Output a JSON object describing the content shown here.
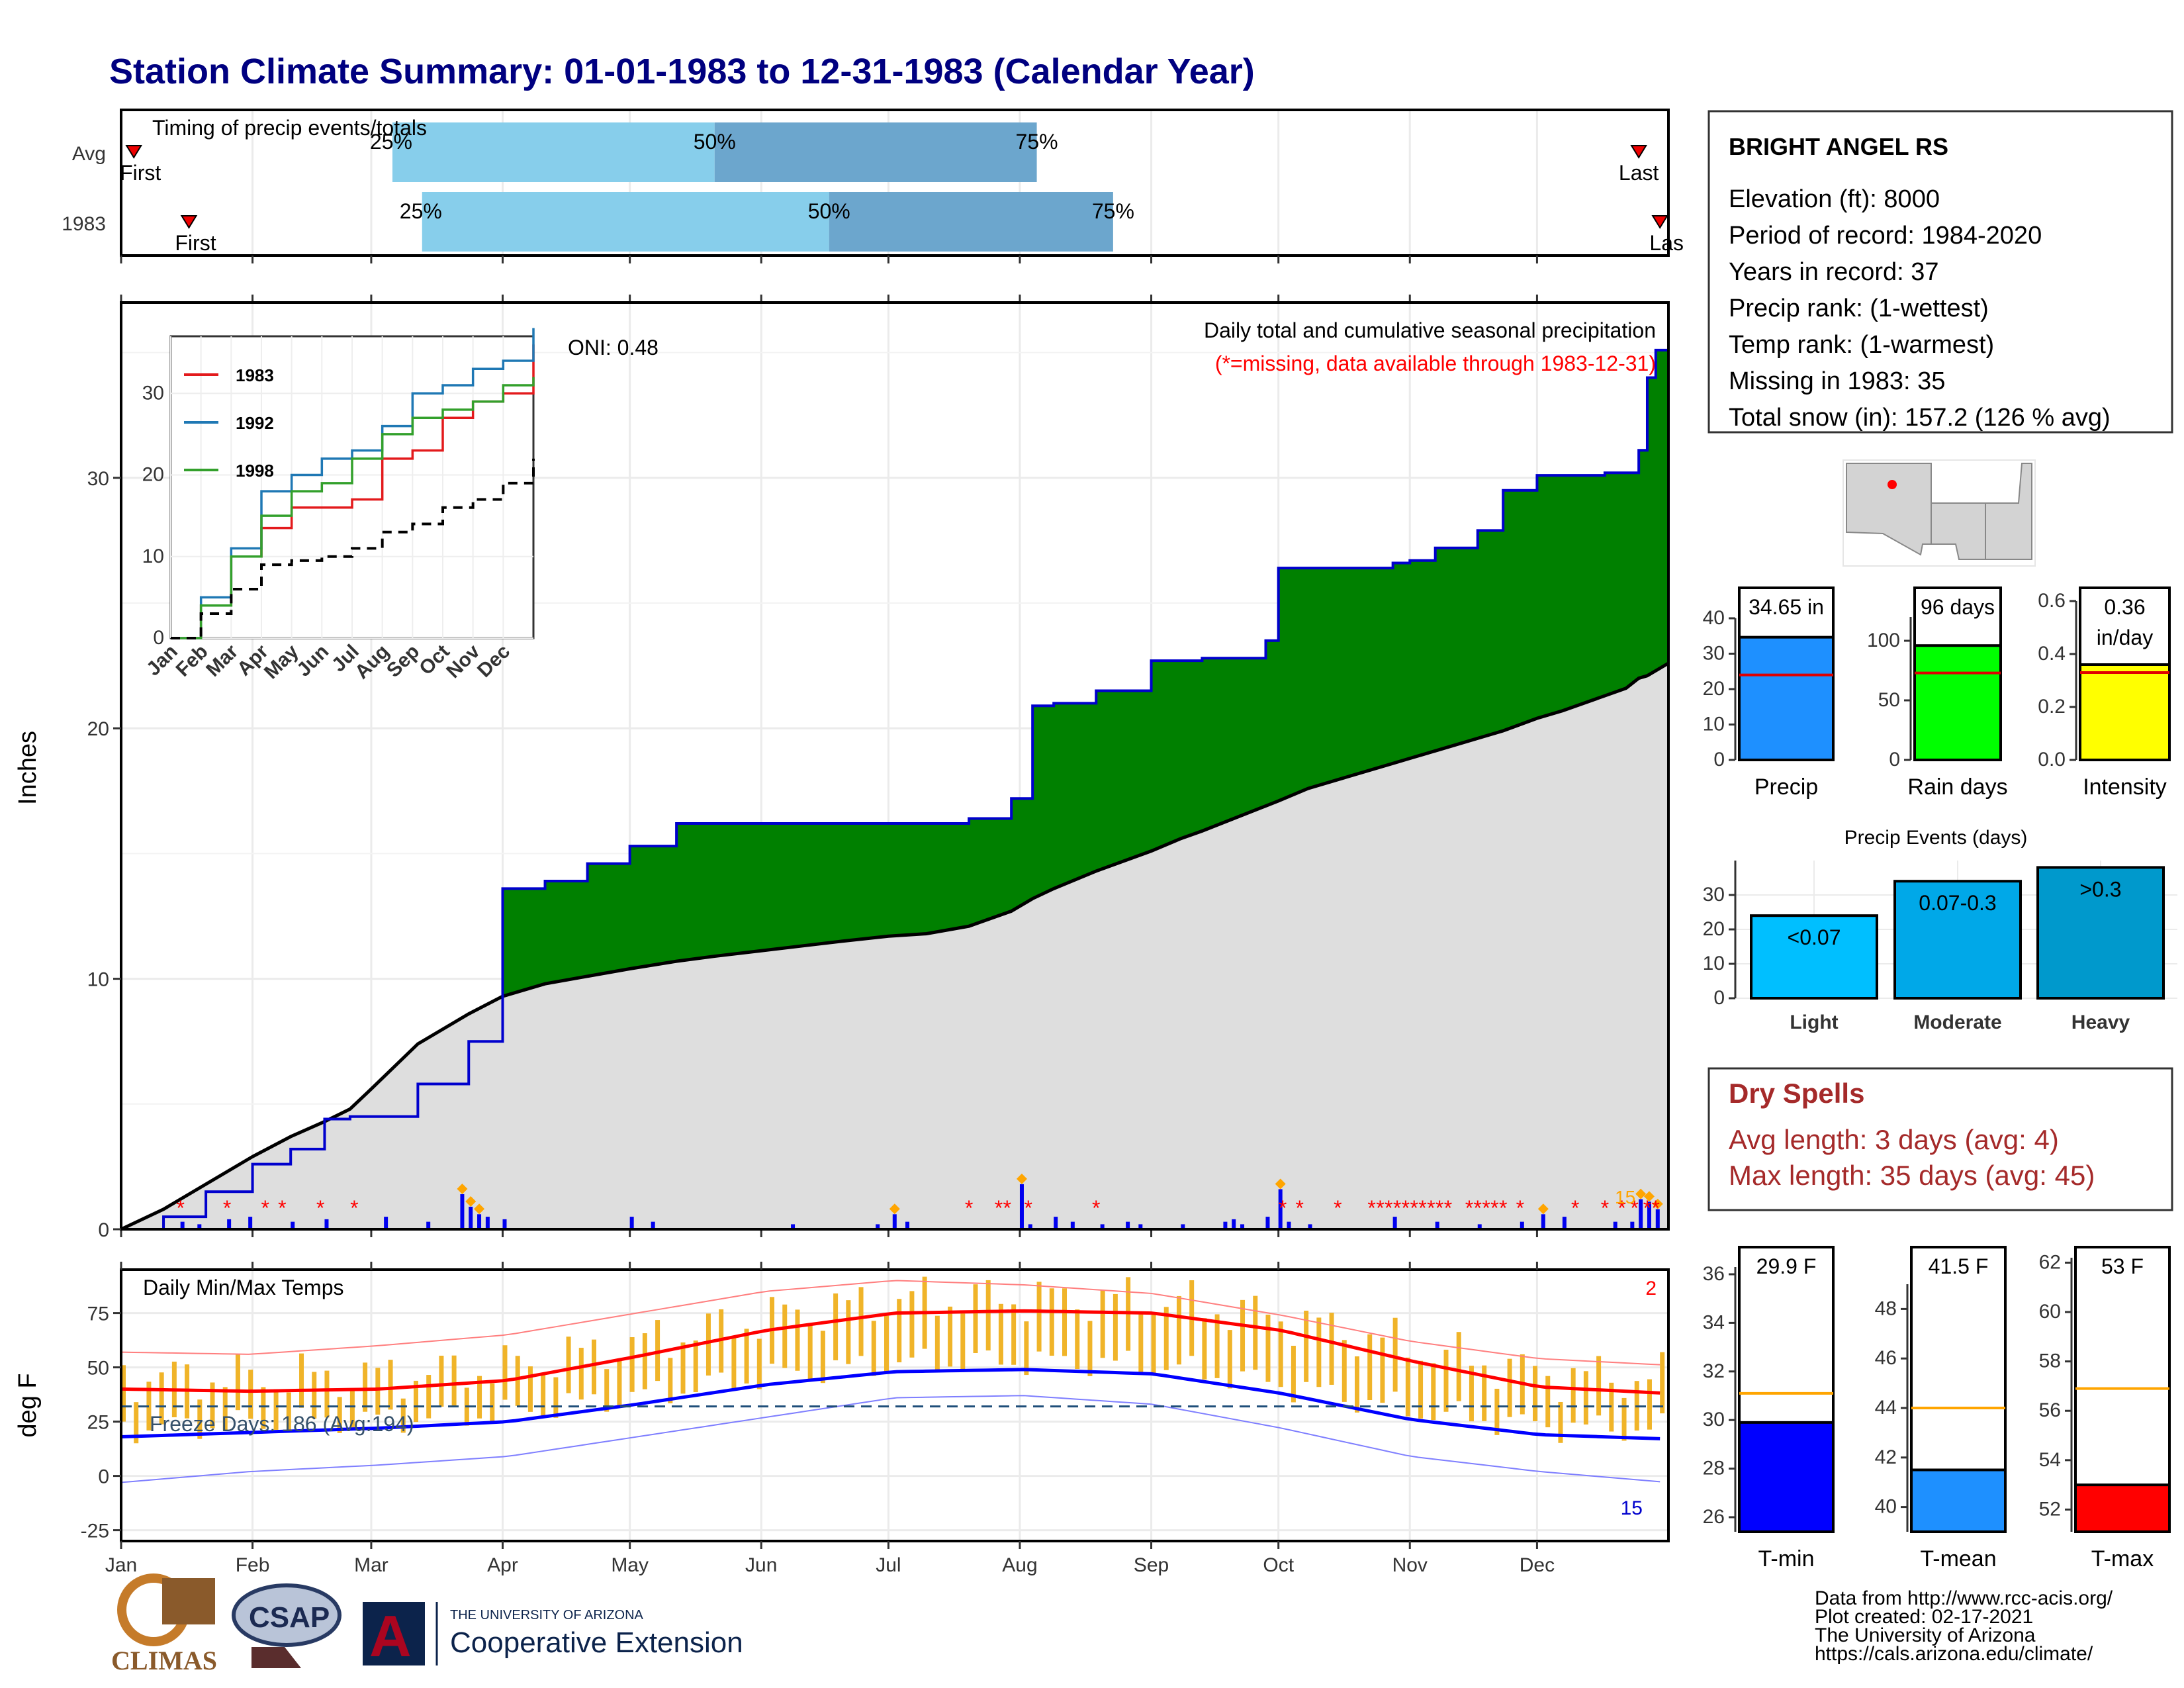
{
  "title": "Station Climate Summary: 01-01-1983 to 12-31-1983 (Calendar Year)",
  "timing_panel": {
    "label": "Timing of precip events/totals",
    "rows": [
      "Avg",
      "1983"
    ],
    "first_label": "First",
    "last_label": "Last",
    "last_label_cut": "Las",
    "pct_labels": [
      "25%",
      "50%",
      "75%"
    ]
  },
  "main_panel": {
    "ylabel": "Inches",
    "legend_line1": "Daily total and cumulative seasonal precipitation",
    "legend_line2": "(*=missing, data available through 1983-12-31)",
    "oni": "ONI: 0.48",
    "count_label": "15",
    "yticks": [
      "0",
      "10",
      "20",
      "30"
    ]
  },
  "inset": {
    "series_labels": [
      "1983",
      "1992",
      "1998"
    ],
    "yticks": [
      "0",
      "10",
      "20",
      "30"
    ],
    "months": [
      "Jan",
      "Feb",
      "Mar",
      "Apr",
      "May",
      "Jun",
      "Jul",
      "Aug",
      "Sep",
      "Oct",
      "Nov",
      "Dec"
    ]
  },
  "temp_panel": {
    "label": "Daily Min/Max Temps",
    "ylabel": "deg F",
    "freeze_label": "Freeze Days: 186 (Avg:194)",
    "count_top": "2",
    "count_bottom": "15",
    "yticks": [
      "-25",
      "0",
      "25",
      "50",
      "75"
    ]
  },
  "months": [
    "Jan",
    "Feb",
    "Mar",
    "Apr",
    "May",
    "Jun",
    "Jul",
    "Aug",
    "Sep",
    "Oct",
    "Nov",
    "Dec"
  ],
  "station": {
    "name": "BRIGHT ANGEL RS",
    "lines": [
      "Elevation (ft): 8000",
      "Period of record: 1984-2020",
      "Years in record: 37",
      "Precip rank:  (1-wettest)",
      "Temp rank:  (1-warmest)",
      "Missing in 1983: 35",
      "Total snow (in): 157.2 (126 % avg)"
    ]
  },
  "precip_bars": [
    {
      "label": "34.65 in",
      "xlabel": "Precip",
      "yticks": [
        "0",
        "10",
        "20",
        "30",
        "40"
      ]
    },
    {
      "label": "96 days",
      "xlabel": "Rain days",
      "yticks": [
        "0",
        "50",
        "100"
      ]
    },
    {
      "label": "0.36",
      "label2": "in/day",
      "xlabel": "Intensity",
      "yticks": [
        "0.0",
        "0.2",
        "0.4",
        "0.6"
      ]
    }
  ],
  "events": {
    "title": "Precip Events (days)",
    "yticks": [
      "0",
      "10",
      "20",
      "30"
    ]
  },
  "dry_spells": {
    "title": "Dry Spells",
    "avg": "Avg length: 3 days (avg: 4)",
    "max": "Max length: 35 days (avg: 45)"
  },
  "temp_bars": [
    {
      "label": "29.9 F",
      "xlabel": "T-min",
      "yticks": [
        "26",
        "28",
        "30",
        "32",
        "34",
        "36"
      ]
    },
    {
      "label": "41.5 F",
      "xlabel": "T-mean",
      "yticks": [
        "40",
        "42",
        "44",
        "46",
        "48"
      ]
    },
    {
      "label": "53 F",
      "xlabel": "T-max",
      "yticks": [
        "52",
        "54",
        "56",
        "58",
        "60",
        "62"
      ]
    }
  ],
  "credits": [
    "Data from http://www.rcc-acis.org/",
    "Plot created: 02-17-2021",
    "The University of Arizona",
    "https://cals.arizona.edu/climate/"
  ],
  "logos": {
    "climas": "CLIMAS",
    "csap": "CSAP",
    "ua_small": "THE UNIVERSITY OF ARIZONA",
    "ua_big": "Cooperative Extension"
  },
  "colors": {
    "title": "#000080",
    "green": "#008000",
    "brown": "#8B5A00",
    "gray": "#dedede",
    "precip_blue": "#1E90FF",
    "rain_green": "#00FF00",
    "intensity_yellow": "#FFFF00",
    "tmax_red": "#FF0000",
    "tmin_blue": "#0000FF",
    "orange": "#FFA500",
    "dry_red": "#A52A2A",
    "light_blue": "#87CEEB",
    "steel_blue": "#6CA6CD"
  },
  "chart_data": [
    {
      "type": "bar",
      "name": "timing",
      "categories": [
        "Avg",
        "1983"
      ],
      "first_day": [
        3,
        16
      ],
      "q25_day": [
        64,
        71
      ],
      "q50_day": [
        140,
        167
      ],
      "q75_day": [
        216,
        234
      ],
      "last_day": [
        358,
        363
      ]
    },
    {
      "type": "area",
      "name": "cumulative_precip",
      "x_unit": "day of year",
      "x": [
        0,
        10,
        20,
        31,
        40,
        48,
        54,
        59,
        70,
        82,
        90,
        100,
        110,
        120,
        131,
        140,
        150,
        160,
        170,
        181,
        190,
        200,
        210,
        215,
        220,
        230,
        243,
        250,
        255,
        270,
        273,
        280,
        290,
        300,
        304,
        310,
        320,
        326,
        334,
        340,
        350,
        355,
        358,
        360,
        362,
        365
      ],
      "cumulative_1983": [
        0,
        0.5,
        1.5,
        2.6,
        3.2,
        4.4,
        4.5,
        4.5,
        5.8,
        7.5,
        13.6,
        13.9,
        14.6,
        15.3,
        16.2,
        16.2,
        16.2,
        16.2,
        16.2,
        16.2,
        16.2,
        16.4,
        17.2,
        20.9,
        21.0,
        21.5,
        22.7,
        22.7,
        22.8,
        23.5,
        26.4,
        26.4,
        26.4,
        26.6,
        26.7,
        27.2,
        27.9,
        29.5,
        30.1,
        30.1,
        30.2,
        30.2,
        31.1,
        34.0,
        35.1,
        35.1
      ],
      "average_cumulative": [
        0,
        0.8,
        1.8,
        2.9,
        3.7,
        4.3,
        4.8,
        5.6,
        7.4,
        8.6,
        9.3,
        9.8,
        10.1,
        10.4,
        10.7,
        10.9,
        11.1,
        11.3,
        11.5,
        11.7,
        11.8,
        12.1,
        12.7,
        13.2,
        13.6,
        14.3,
        15.1,
        15.6,
        15.9,
        16.9,
        17.1,
        17.6,
        18.1,
        18.6,
        18.8,
        19.1,
        19.6,
        19.9,
        20.4,
        20.7,
        21.3,
        21.6,
        22.0,
        22.1,
        22.3,
        22.6
      ],
      "ylim": [
        0,
        37
      ]
    },
    {
      "type": "line",
      "name": "inset_cumulative",
      "x": [
        "Jan",
        "Feb",
        "Mar",
        "Apr",
        "May",
        "Jun",
        "Jul",
        "Aug",
        "Sep",
        "Oct",
        "Nov",
        "Dec",
        "End"
      ],
      "series": [
        {
          "name": "1983",
          "values": [
            0,
            4,
            10,
            13.5,
            16,
            16,
            17,
            22,
            23,
            27,
            29,
            30,
            36
          ]
        },
        {
          "name": "1992",
          "values": [
            0,
            5,
            11,
            18,
            20,
            22,
            23,
            26,
            30,
            31,
            33,
            34,
            38
          ]
        },
        {
          "name": "1998",
          "values": [
            0,
            4,
            10,
            15,
            18,
            19,
            22,
            25,
            27,
            28,
            29,
            31,
            32
          ]
        },
        {
          "values": [
            0,
            3,
            6,
            9,
            9.5,
            10,
            11,
            13,
            14,
            16,
            17,
            19,
            22
          ]
        }
      ],
      "ylim": [
        0,
        37
      ]
    },
    {
      "type": "line",
      "name": "daily_temps",
      "x": [
        "Jan",
        "Feb",
        "Mar",
        "Apr",
        "May",
        "Jun",
        "Jul",
        "Aug",
        "Sep",
        "Oct",
        "Nov",
        "Dec",
        "End"
      ],
      "series": [
        {
          "values": [
            40,
            39,
            40,
            44,
            55,
            67,
            75,
            76,
            75,
            67,
            53,
            41,
            38
          ]
        },
        {
          "values": [
            18,
            20,
            22,
            25,
            33,
            42,
            48,
            49,
            47,
            38,
            26,
            19,
            17
          ]
        },
        {
          "values": [
            57,
            56,
            60,
            65,
            75,
            85,
            90,
            88,
            84,
            74,
            62,
            54,
            51
          ]
        },
        {
          "values": [
            -3,
            2,
            5,
            9,
            18,
            27,
            36,
            37,
            33,
            22,
            9,
            2,
            -3
          ]
        }
      ],
      "freeze_threshold": 32,
      "ylim": [
        -30,
        95
      ]
    },
    {
      "type": "bar",
      "name": "precip_summary",
      "categories": [
        "Precip",
        "Rain days",
        "Intensity"
      ],
      "values": [
        34.65,
        96,
        0.36
      ],
      "averages": [
        24,
        73,
        0.33
      ]
    },
    {
      "type": "bar",
      "name": "precip_events",
      "categories": [
        "Light",
        "Moderate",
        "Heavy"
      ],
      "series_labels": [
        "<0.07",
        "0.07-0.3",
        ">0.3"
      ],
      "values": [
        24,
        34,
        38
      ],
      "ylim": [
        0,
        40
      ]
    },
    {
      "type": "bar",
      "name": "temp_summary",
      "categories": [
        "T-min",
        "T-mean",
        "T-max"
      ],
      "values": [
        29.9,
        41.5,
        53
      ],
      "averages": [
        31.1,
        44,
        56.9
      ]
    }
  ]
}
